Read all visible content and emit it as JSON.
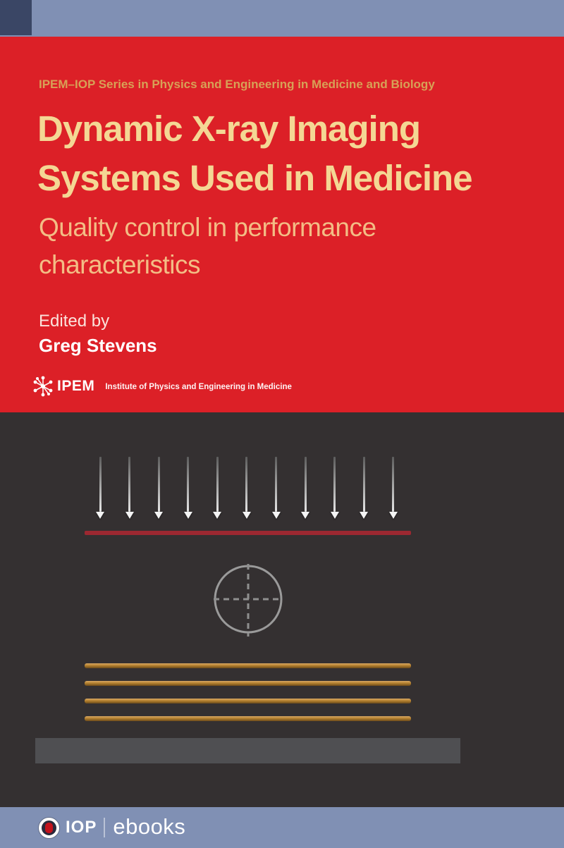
{
  "header": {
    "series_label": "IPEM–IOP Series in Physics and Engineering in Medicine and Biology"
  },
  "cover": {
    "title": "Dynamic X-ray Imaging Systems Used in Medicine",
    "title_lines": [
      "Dynamic X-ray Imaging",
      "Systems Used in Medicine"
    ],
    "subtitle": "Quality control in performance characteristics",
    "subtitle_lines": [
      "Quality control in performance",
      "characteristics"
    ],
    "edited_by_label": "Edited by",
    "editor_name": "Greg Stevens"
  },
  "publisher": {
    "ipem_acronym": "IPEM",
    "ipem_full_name": "Institute of Physics and Engineering in Medicine",
    "footer_brand": "IOP",
    "footer_product": "ebooks"
  },
  "diagram": {
    "description": "X-ray beam arrows onto a line, crosshair target, image grid lines and detector bar",
    "arrow_count": 11,
    "grid_line_count": 4
  },
  "colors": {
    "band": "#8090b4",
    "accent_square": "#3a4665",
    "background_red": "#dc2027",
    "title_text": "#f4d794",
    "subtitle_text": "#f3bd85",
    "series_text": "#d7a156",
    "diagram_bg": "#343031",
    "beam_line": "#9c2831",
    "grid_line": "#b5812f",
    "detector": "#4f4f52"
  }
}
